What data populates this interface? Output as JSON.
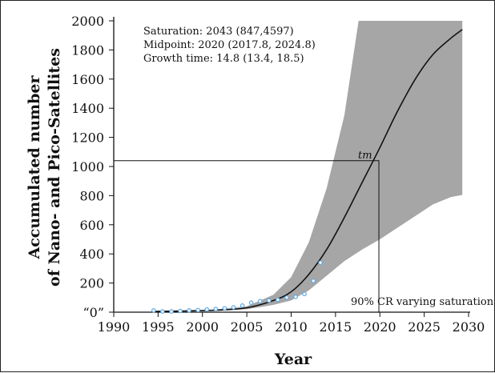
{
  "chart_data": {
    "type": "scatter",
    "title": "",
    "xlabel": "Year",
    "ylabel_lines": [
      "Accumulated number",
      "of Nano- and Pico-Satellites"
    ],
    "xlim": [
      1990,
      2030
    ],
    "ylim": [
      0,
      2000
    ],
    "xticks": [
      1990,
      1995,
      2000,
      2005,
      2010,
      2015,
      2020,
      2025,
      2030
    ],
    "yticks": [
      {
        "value": 0,
        "label": "“0”"
      },
      {
        "value": 200,
        "label": "200"
      },
      {
        "value": 400,
        "label": "400"
      },
      {
        "value": 600,
        "label": "600"
      },
      {
        "value": 800,
        "label": "800"
      },
      {
        "value": 1000,
        "label": "1000"
      },
      {
        "value": 1200,
        "label": "1200"
      },
      {
        "value": 1400,
        "label": "1400"
      },
      {
        "value": 1600,
        "label": "1600"
      },
      {
        "value": 1800,
        "label": "1800"
      },
      {
        "value": 2000,
        "label": "2000"
      }
    ],
    "grid": false,
    "annotations": {
      "saturation": "Saturation: 2043 (847,4597)",
      "midpoint": "Midpoint: 2020 (2017.8, 2024.8)",
      "growth_time": "Growth time: 14.8 (13.4, 18.5)",
      "tm_label": "tm",
      "band_label": "90% CR varying saturation"
    },
    "series": [
      {
        "kind": "observed",
        "color": "#5aa9e6",
        "points": [
          [
            1994.5,
            12
          ],
          [
            1995.5,
            5
          ],
          [
            1996.5,
            5
          ],
          [
            1997.5,
            8
          ],
          [
            1998.5,
            12
          ],
          [
            1999.5,
            14
          ],
          [
            2000.5,
            18
          ],
          [
            2001.5,
            22
          ],
          [
            2002.5,
            26
          ],
          [
            2003.5,
            33
          ],
          [
            2004.5,
            45
          ],
          [
            2005.5,
            65
          ],
          [
            2006.5,
            75
          ],
          [
            2007.5,
            80
          ],
          [
            2008.5,
            85
          ],
          [
            2009.5,
            100
          ],
          [
            2010.5,
            105
          ],
          [
            2011.5,
            125
          ],
          [
            2012.5,
            215
          ],
          [
            2013.3,
            340
          ]
        ]
      },
      {
        "kind": "logistic-fit",
        "color": "#111111",
        "points": [
          [
            1994.5,
            5
          ],
          [
            1998,
            8
          ],
          [
            2002,
            15
          ],
          [
            2005,
            30
          ],
          [
            2008,
            80
          ],
          [
            2010,
            140
          ],
          [
            2012,
            260
          ],
          [
            2014,
            430
          ],
          [
            2016,
            650
          ],
          [
            2018,
            890
          ],
          [
            2020,
            1130
          ],
          [
            2022,
            1380
          ],
          [
            2024,
            1600
          ],
          [
            2026,
            1770
          ],
          [
            2028,
            1880
          ],
          [
            2029.3,
            1940
          ]
        ]
      },
      {
        "kind": "credible-band",
        "color": "#a6a6a6",
        "upper": [
          [
            1994.5,
            5
          ],
          [
            2000,
            10
          ],
          [
            2005,
            40
          ],
          [
            2008,
            120
          ],
          [
            2010,
            240
          ],
          [
            2012,
            480
          ],
          [
            2014,
            850
          ],
          [
            2016,
            1350
          ],
          [
            2017.6,
            2000
          ],
          [
            2029.3,
            2000
          ]
        ],
        "lower": [
          [
            1994.5,
            5
          ],
          [
            2000,
            8
          ],
          [
            2005,
            20
          ],
          [
            2008,
            50
          ],
          [
            2010,
            80
          ],
          [
            2012,
            150
          ],
          [
            2014,
            250
          ],
          [
            2016,
            350
          ],
          [
            2018,
            430
          ],
          [
            2020,
            500
          ],
          [
            2022,
            580
          ],
          [
            2024,
            660
          ],
          [
            2026,
            740
          ],
          [
            2028,
            790
          ],
          [
            2029.3,
            805
          ]
        ]
      }
    ],
    "reference_lines": {
      "tm_x": 2019.8,
      "tm_y": 1040
    }
  }
}
